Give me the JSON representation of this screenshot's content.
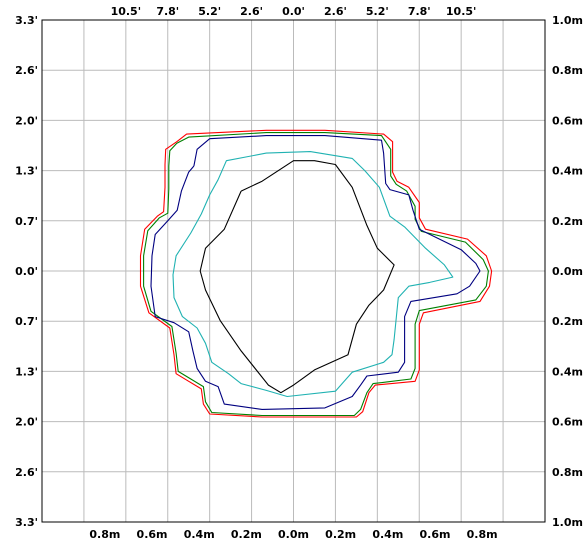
{
  "chart_data": {
    "type": "line",
    "title": "",
    "xlabel": "",
    "ylabel": "",
    "grid": true,
    "xlim": [
      -12,
      12
    ],
    "ylim": [
      -3.3,
      3.3
    ],
    "x_ticks_top": [
      "10.5'",
      "7.8'",
      "5.2'",
      "2.6'",
      "0.0'",
      "2.6'",
      "5.2'",
      "7.8'",
      "10.5'"
    ],
    "x_ticks_bottom": [
      "0.8m",
      "0.6m",
      "0.4m",
      "0.2m",
      "0.0m",
      "0.2m",
      "0.4m",
      "0.6m",
      "0.8m"
    ],
    "y_ticks_left": [
      "3.3'",
      "2.6'",
      "2.0'",
      "1.3'",
      "0.7'",
      "0.0'",
      "0.7'",
      "1.3'",
      "2.0'",
      "2.6'",
      "3.3'"
    ],
    "y_ticks_right": [
      "1.0m",
      "0.8m",
      "0.6m",
      "0.4m",
      "0.2m",
      "0.0m",
      "0.2m",
      "0.4m",
      "0.6m",
      "0.8m",
      "1.0m"
    ],
    "series": [
      {
        "color": "#ff0000",
        "points": [
          [
            -5.57,
            1.7
          ],
          [
            -5.1,
            1.8
          ],
          [
            -1.3,
            1.85
          ],
          [
            1.5,
            1.85
          ],
          [
            4.3,
            1.8
          ],
          [
            4.73,
            1.7
          ],
          [
            4.73,
            1.3
          ],
          [
            4.94,
            1.18
          ],
          [
            5.5,
            1.1
          ],
          [
            6.0,
            0.9
          ],
          [
            6.0,
            0.7
          ],
          [
            6.3,
            0.55
          ],
          [
            8.3,
            0.42
          ],
          [
            9.2,
            0.2
          ],
          [
            9.45,
            0.0
          ],
          [
            9.35,
            -0.2
          ],
          [
            8.9,
            -0.4
          ],
          [
            6.2,
            -0.55
          ],
          [
            6.0,
            -0.7
          ],
          [
            6.0,
            -1.3
          ],
          [
            5.8,
            -1.45
          ],
          [
            3.9,
            -1.5
          ],
          [
            3.6,
            -1.6
          ],
          [
            3.3,
            -1.85
          ],
          [
            3.0,
            -1.92
          ],
          [
            -1.5,
            -1.92
          ],
          [
            -4.0,
            -1.88
          ],
          [
            -4.3,
            -1.75
          ],
          [
            -4.4,
            -1.55
          ],
          [
            -5.0,
            -1.45
          ],
          [
            -5.6,
            -1.35
          ],
          [
            -5.7,
            -1.1
          ],
          [
            -5.9,
            -0.75
          ],
          [
            -6.9,
            -0.55
          ],
          [
            -7.3,
            -0.2
          ],
          [
            -7.3,
            0.2
          ],
          [
            -7.1,
            0.55
          ],
          [
            -6.5,
            0.72
          ],
          [
            -6.2,
            0.78
          ],
          [
            -6.13,
            1.1
          ],
          [
            -6.13,
            1.4
          ],
          [
            -6.1,
            1.6
          ],
          [
            -5.57,
            1.7
          ]
        ]
      },
      {
        "color": "#008000",
        "points": [
          [
            -5.57,
            1.68
          ],
          [
            -5.0,
            1.76
          ],
          [
            -1.3,
            1.82
          ],
          [
            1.5,
            1.82
          ],
          [
            4.2,
            1.78
          ],
          [
            4.64,
            1.6
          ],
          [
            4.64,
            1.25
          ],
          [
            4.9,
            1.14
          ],
          [
            5.4,
            1.05
          ],
          [
            5.8,
            0.85
          ],
          [
            5.8,
            0.68
          ],
          [
            6.1,
            0.52
          ],
          [
            8.2,
            0.38
          ],
          [
            9.05,
            0.15
          ],
          [
            9.3,
            0.0
          ],
          [
            9.2,
            -0.2
          ],
          [
            8.7,
            -0.38
          ],
          [
            6.0,
            -0.52
          ],
          [
            5.8,
            -0.7
          ],
          [
            5.8,
            -1.28
          ],
          [
            5.6,
            -1.42
          ],
          [
            3.8,
            -1.48
          ],
          [
            3.5,
            -1.6
          ],
          [
            3.2,
            -1.82
          ],
          [
            2.9,
            -1.9
          ],
          [
            -1.5,
            -1.9
          ],
          [
            -3.9,
            -1.86
          ],
          [
            -4.2,
            -1.72
          ],
          [
            -4.3,
            -1.52
          ],
          [
            -4.9,
            -1.42
          ],
          [
            -5.5,
            -1.32
          ],
          [
            -5.6,
            -1.08
          ],
          [
            -5.8,
            -0.73
          ],
          [
            -6.8,
            -0.53
          ],
          [
            -7.15,
            -0.2
          ],
          [
            -7.15,
            0.2
          ],
          [
            -6.95,
            0.53
          ],
          [
            -6.4,
            0.7
          ],
          [
            -6.0,
            0.76
          ],
          [
            -5.95,
            1.08
          ],
          [
            -5.95,
            1.38
          ],
          [
            -5.9,
            1.58
          ],
          [
            -5.57,
            1.68
          ]
        ]
      },
      {
        "color": "#000080",
        "points": [
          [
            -4.75,
            1.38
          ],
          [
            -4.6,
            1.6
          ],
          [
            -4.0,
            1.74
          ],
          [
            -1.3,
            1.78
          ],
          [
            1.5,
            1.78
          ],
          [
            4.2,
            1.72
          ],
          [
            4.3,
            1.55
          ],
          [
            4.4,
            1.15
          ],
          [
            4.6,
            1.07
          ],
          [
            5.5,
            1.0
          ],
          [
            5.7,
            0.8
          ],
          [
            6.0,
            0.55
          ],
          [
            8.0,
            0.28
          ],
          [
            8.7,
            0.1
          ],
          [
            8.9,
            0.0
          ],
          [
            8.4,
            -0.2
          ],
          [
            7.8,
            -0.3
          ],
          [
            5.6,
            -0.4
          ],
          [
            5.3,
            -0.6
          ],
          [
            5.3,
            -1.2
          ],
          [
            5.0,
            -1.33
          ],
          [
            3.5,
            -1.38
          ],
          [
            3.2,
            -1.5
          ],
          [
            2.8,
            -1.65
          ],
          [
            1.5,
            -1.8
          ],
          [
            -1.5,
            -1.82
          ],
          [
            -3.3,
            -1.75
          ],
          [
            -3.6,
            -1.52
          ],
          [
            -4.2,
            -1.45
          ],
          [
            -4.6,
            -1.28
          ],
          [
            -4.8,
            -1.05
          ],
          [
            -5.0,
            -0.8
          ],
          [
            -5.7,
            -0.68
          ],
          [
            -6.6,
            -0.6
          ],
          [
            -6.8,
            -0.2
          ],
          [
            -6.75,
            0.2
          ],
          [
            -6.6,
            0.48
          ],
          [
            -6.0,
            0.66
          ],
          [
            -5.55,
            0.8
          ],
          [
            -5.35,
            1.05
          ],
          [
            -5.0,
            1.3
          ],
          [
            -4.75,
            1.38
          ]
        ]
      },
      {
        "color": "#20b2b2",
        "points": [
          [
            -3.6,
            1.2
          ],
          [
            -3.2,
            1.45
          ],
          [
            -1.3,
            1.55
          ],
          [
            0.8,
            1.57
          ],
          [
            2.8,
            1.48
          ],
          [
            3.4,
            1.32
          ],
          [
            4.1,
            1.1
          ],
          [
            4.6,
            0.72
          ],
          [
            5.3,
            0.58
          ],
          [
            6.3,
            0.3
          ],
          [
            7.2,
            0.08
          ],
          [
            7.6,
            -0.08
          ],
          [
            6.5,
            -0.15
          ],
          [
            5.5,
            -0.2
          ],
          [
            5.0,
            -0.35
          ],
          [
            4.8,
            -0.9
          ],
          [
            4.7,
            -1.1
          ],
          [
            4.3,
            -1.2
          ],
          [
            2.8,
            -1.33
          ],
          [
            2.0,
            -1.58
          ],
          [
            -0.3,
            -1.65
          ],
          [
            -1.3,
            -1.57
          ],
          [
            -2.5,
            -1.48
          ],
          [
            -3.1,
            -1.35
          ],
          [
            -3.9,
            -1.2
          ],
          [
            -4.2,
            -0.95
          ],
          [
            -4.6,
            -0.75
          ],
          [
            -5.3,
            -0.6
          ],
          [
            -5.7,
            -0.35
          ],
          [
            -5.75,
            -0.05
          ],
          [
            -5.6,
            0.2
          ],
          [
            -4.9,
            0.5
          ],
          [
            -4.4,
            0.75
          ],
          [
            -4.0,
            1.0
          ],
          [
            -3.6,
            1.2
          ]
        ]
      },
      {
        "color": "#000000",
        "points": [
          [
            -2.5,
            1.05
          ],
          [
            -1.5,
            1.18
          ],
          [
            0.0,
            1.45
          ],
          [
            1.0,
            1.45
          ],
          [
            2.0,
            1.4
          ],
          [
            2.8,
            1.1
          ],
          [
            3.5,
            0.6
          ],
          [
            4.0,
            0.3
          ],
          [
            4.8,
            0.08
          ],
          [
            4.3,
            -0.25
          ],
          [
            3.6,
            -0.45
          ],
          [
            3.0,
            -0.7
          ],
          [
            2.6,
            -1.1
          ],
          [
            1.0,
            -1.3
          ],
          [
            0.0,
            -1.5
          ],
          [
            -0.6,
            -1.6
          ],
          [
            -1.2,
            -1.5
          ],
          [
            -2.5,
            -1.05
          ],
          [
            -3.5,
            -0.65
          ],
          [
            -4.2,
            -0.25
          ],
          [
            -4.45,
            0.0
          ],
          [
            -4.2,
            0.3
          ],
          [
            -3.3,
            0.55
          ],
          [
            -2.5,
            1.05
          ]
        ]
      }
    ]
  }
}
